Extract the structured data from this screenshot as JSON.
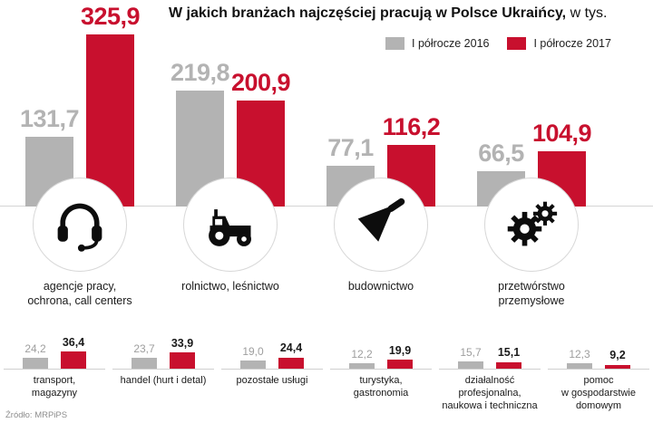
{
  "header": {
    "title_bold": "W jakich branżach najczęściej pracują w Polsce Ukraińcy,",
    "title_normal": " w tys."
  },
  "legend": [
    {
      "label": "I półrocze 2016",
      "color": "#b3b3b3"
    },
    {
      "label": "I półrocze 2017",
      "color": "#c8102e"
    }
  ],
  "source": "Źródło: MRPiPS",
  "chart_data": [
    {
      "type": "bar",
      "title": "W jakich branżach najczęściej pracują w Polsce Ukraińcy (w tys.)",
      "legend_position": "top-right",
      "categories": [
        "agencje pracy, ochrona, call centers",
        "rolnictwo, leśnictwo",
        "budownictwo",
        "przetwórstwo przemysłowe"
      ],
      "category_lines": [
        [
          "agencje pracy,",
          "ochrona, call centers"
        ],
        [
          "rolnictwo, leśnictwo"
        ],
        [
          "budownictwo"
        ],
        [
          "przetwórstwo",
          "przemysłowe"
        ]
      ],
      "icons": [
        "headset-icon",
        "tractor-icon",
        "trowel-icon",
        "gears-icon"
      ],
      "series": [
        {
          "name": "I półrocze 2016",
          "color": "#b3b3b3",
          "values": [
            131.7,
            219.8,
            77.1,
            66.5
          ]
        },
        {
          "name": "I półrocze 2017",
          "color": "#c8102e",
          "values": [
            325.9,
            200.9,
            116.2,
            104.9
          ]
        }
      ],
      "value_label_colors": [
        "#b3b3b3",
        "#c8102e"
      ]
    },
    {
      "type": "bar",
      "categories": [
        "transport, magazyny",
        "handel (hurt i detal)",
        "pozostałe usługi",
        "turystyka, gastronomia",
        "działalność profesjonalna, naukowa i techniczna",
        "pomoc w gospodarstwie domowym"
      ],
      "category_lines": [
        [
          "transport,",
          "magazyny"
        ],
        [
          "handel (hurt i detal)"
        ],
        [
          "pozostałe usługi"
        ],
        [
          "turystyka,",
          "gastronomia"
        ],
        [
          "działalność",
          "profesjonalna,",
          "naukowa i techniczna"
        ],
        [
          "pomoc",
          "w gospodarstwie",
          "domowym"
        ]
      ],
      "series": [
        {
          "name": "I półrocze 2016",
          "color": "#b3b3b3",
          "values": [
            24.2,
            23.7,
            19.0,
            12.2,
            15.7,
            12.3
          ]
        },
        {
          "name": "I półrocze 2017",
          "color": "#c8102e",
          "values": [
            36.4,
            33.9,
            24.4,
            19.9,
            15.1,
            9.2
          ]
        }
      ],
      "value_label_colors": [
        "#9e9e9e",
        "#1a1a1a"
      ]
    }
  ]
}
